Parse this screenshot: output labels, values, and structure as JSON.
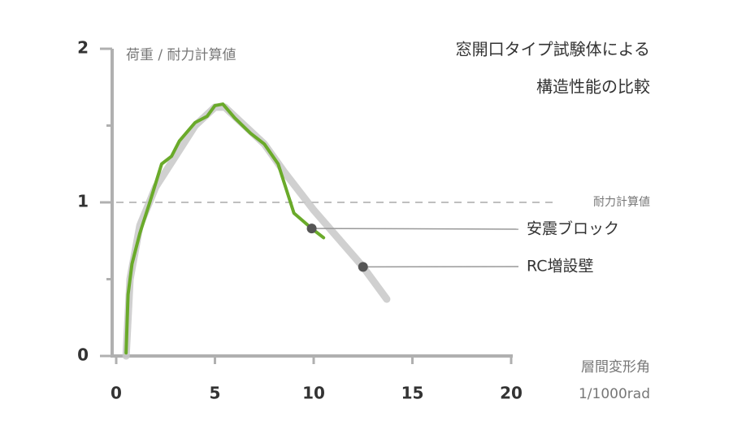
{
  "chart_data": {
    "type": "line",
    "title": [
      "窓開口タイプ試験体による",
      "構造性能の比較"
    ],
    "ylabel": "荷重 / 耐力計算値",
    "xlabel": [
      "層間変形角",
      "1/1000rad"
    ],
    "xlim": [
      0,
      20
    ],
    "xticks": [
      0,
      5,
      10,
      15,
      20
    ],
    "ylim": [
      0,
      2
    ],
    "yticks": [
      0,
      1,
      2
    ],
    "yminorticks": [
      0.5,
      1.5
    ],
    "reference": {
      "value": 1,
      "label": "耐力計算値"
    },
    "series": [
      {
        "name": "RC増設壁",
        "color": "#c8c8c8",
        "x": [
          0.5,
          0.7,
          1.2,
          2,
          3,
          4,
          5,
          5.5,
          6.5,
          7.5,
          8.5,
          10,
          12.5,
          13.7
        ],
        "values": [
          0,
          0.5,
          0.85,
          1.1,
          1.3,
          1.5,
          1.62,
          1.62,
          1.5,
          1.38,
          1.2,
          0.95,
          0.58,
          0.37
        ]
      },
      {
        "name": "安震ブロック",
        "color": "#6aaa2a",
        "x": [
          0.5,
          0.6,
          0.8,
          1.2,
          1.7,
          2.3,
          2.8,
          3.2,
          4,
          4.6,
          5,
          5.4,
          6,
          6.8,
          7.5,
          8.2,
          8.7,
          9,
          9.9,
          10.5
        ],
        "values": [
          0.02,
          0.4,
          0.6,
          0.8,
          1.0,
          1.25,
          1.3,
          1.4,
          1.52,
          1.56,
          1.63,
          1.64,
          1.55,
          1.45,
          1.38,
          1.25,
          1.05,
          0.93,
          0.83,
          0.77
        ]
      }
    ]
  }
}
